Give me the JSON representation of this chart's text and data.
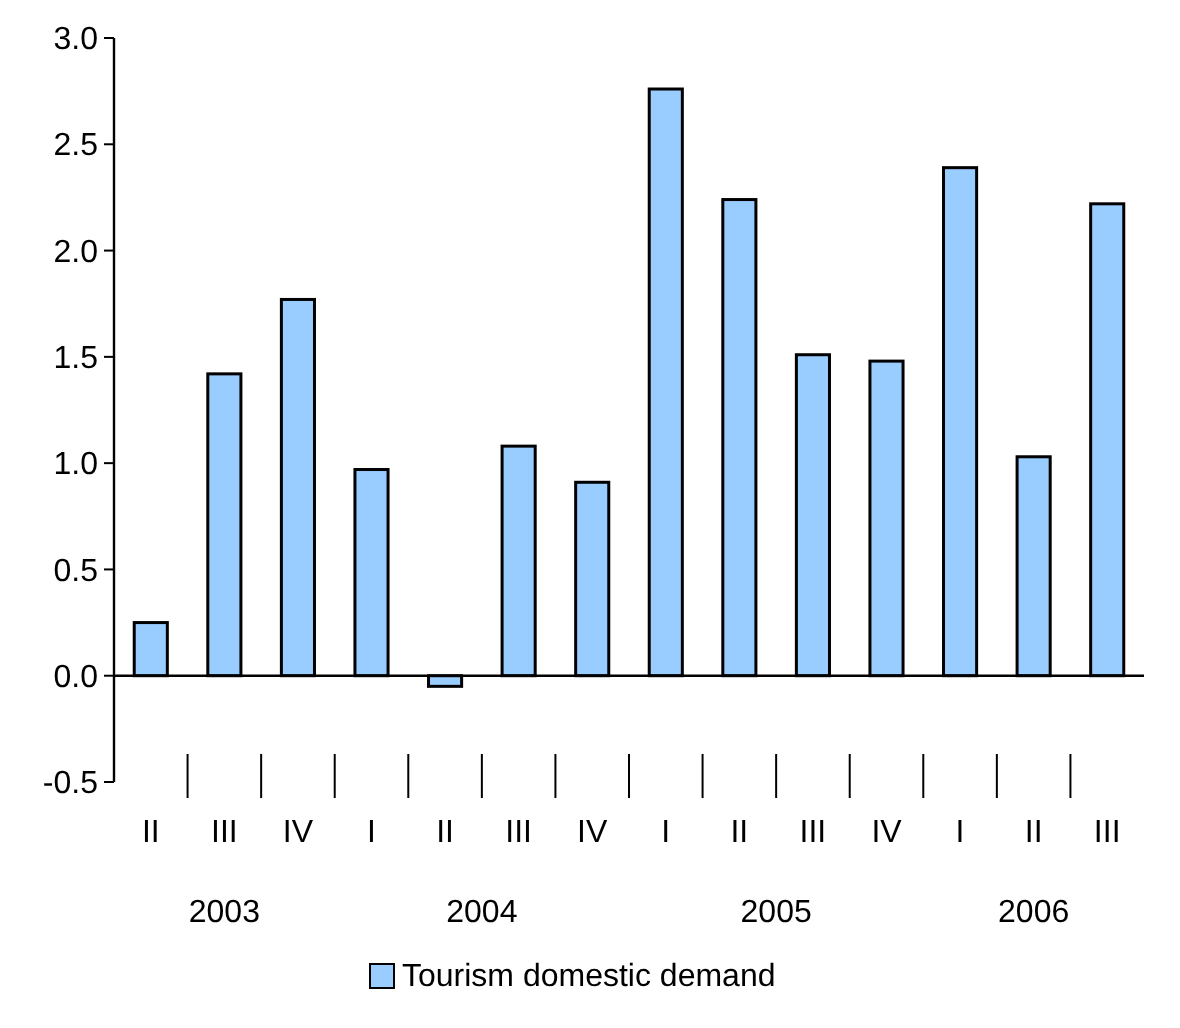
{
  "chart_data": {
    "type": "bar",
    "categories": [
      "II",
      "III",
      "IV",
      "I",
      "II",
      "III",
      "IV",
      "I",
      "II",
      "III",
      "IV",
      "I",
      "II",
      "III"
    ],
    "series": [
      {
        "name": "Tourism domestic demand",
        "color": "#99ccff",
        "values": [
          0.25,
          1.42,
          1.77,
          0.97,
          -0.05,
          1.08,
          0.91,
          2.76,
          2.24,
          1.51,
          1.48,
          2.39,
          1.03,
          2.22
        ]
      }
    ],
    "annotations": [
      "2003",
      "2004",
      "2005",
      "2006"
    ],
    "ylim": [
      -0.5,
      3.0
    ],
    "yticks": [
      {
        "value": -0.5,
        "label": "-0.5"
      },
      {
        "value": 0,
        "label": "0.0"
      },
      {
        "value": 0.5,
        "label": "0.5"
      },
      {
        "value": 1,
        "label": "1.0"
      },
      {
        "value": 1.5,
        "label": "1.5"
      },
      {
        "value": 2,
        "label": "2.0"
      },
      {
        "value": 2.5,
        "label": "2.5"
      },
      {
        "value": 3,
        "label": "3.0"
      }
    ],
    "legend": "bottom"
  }
}
